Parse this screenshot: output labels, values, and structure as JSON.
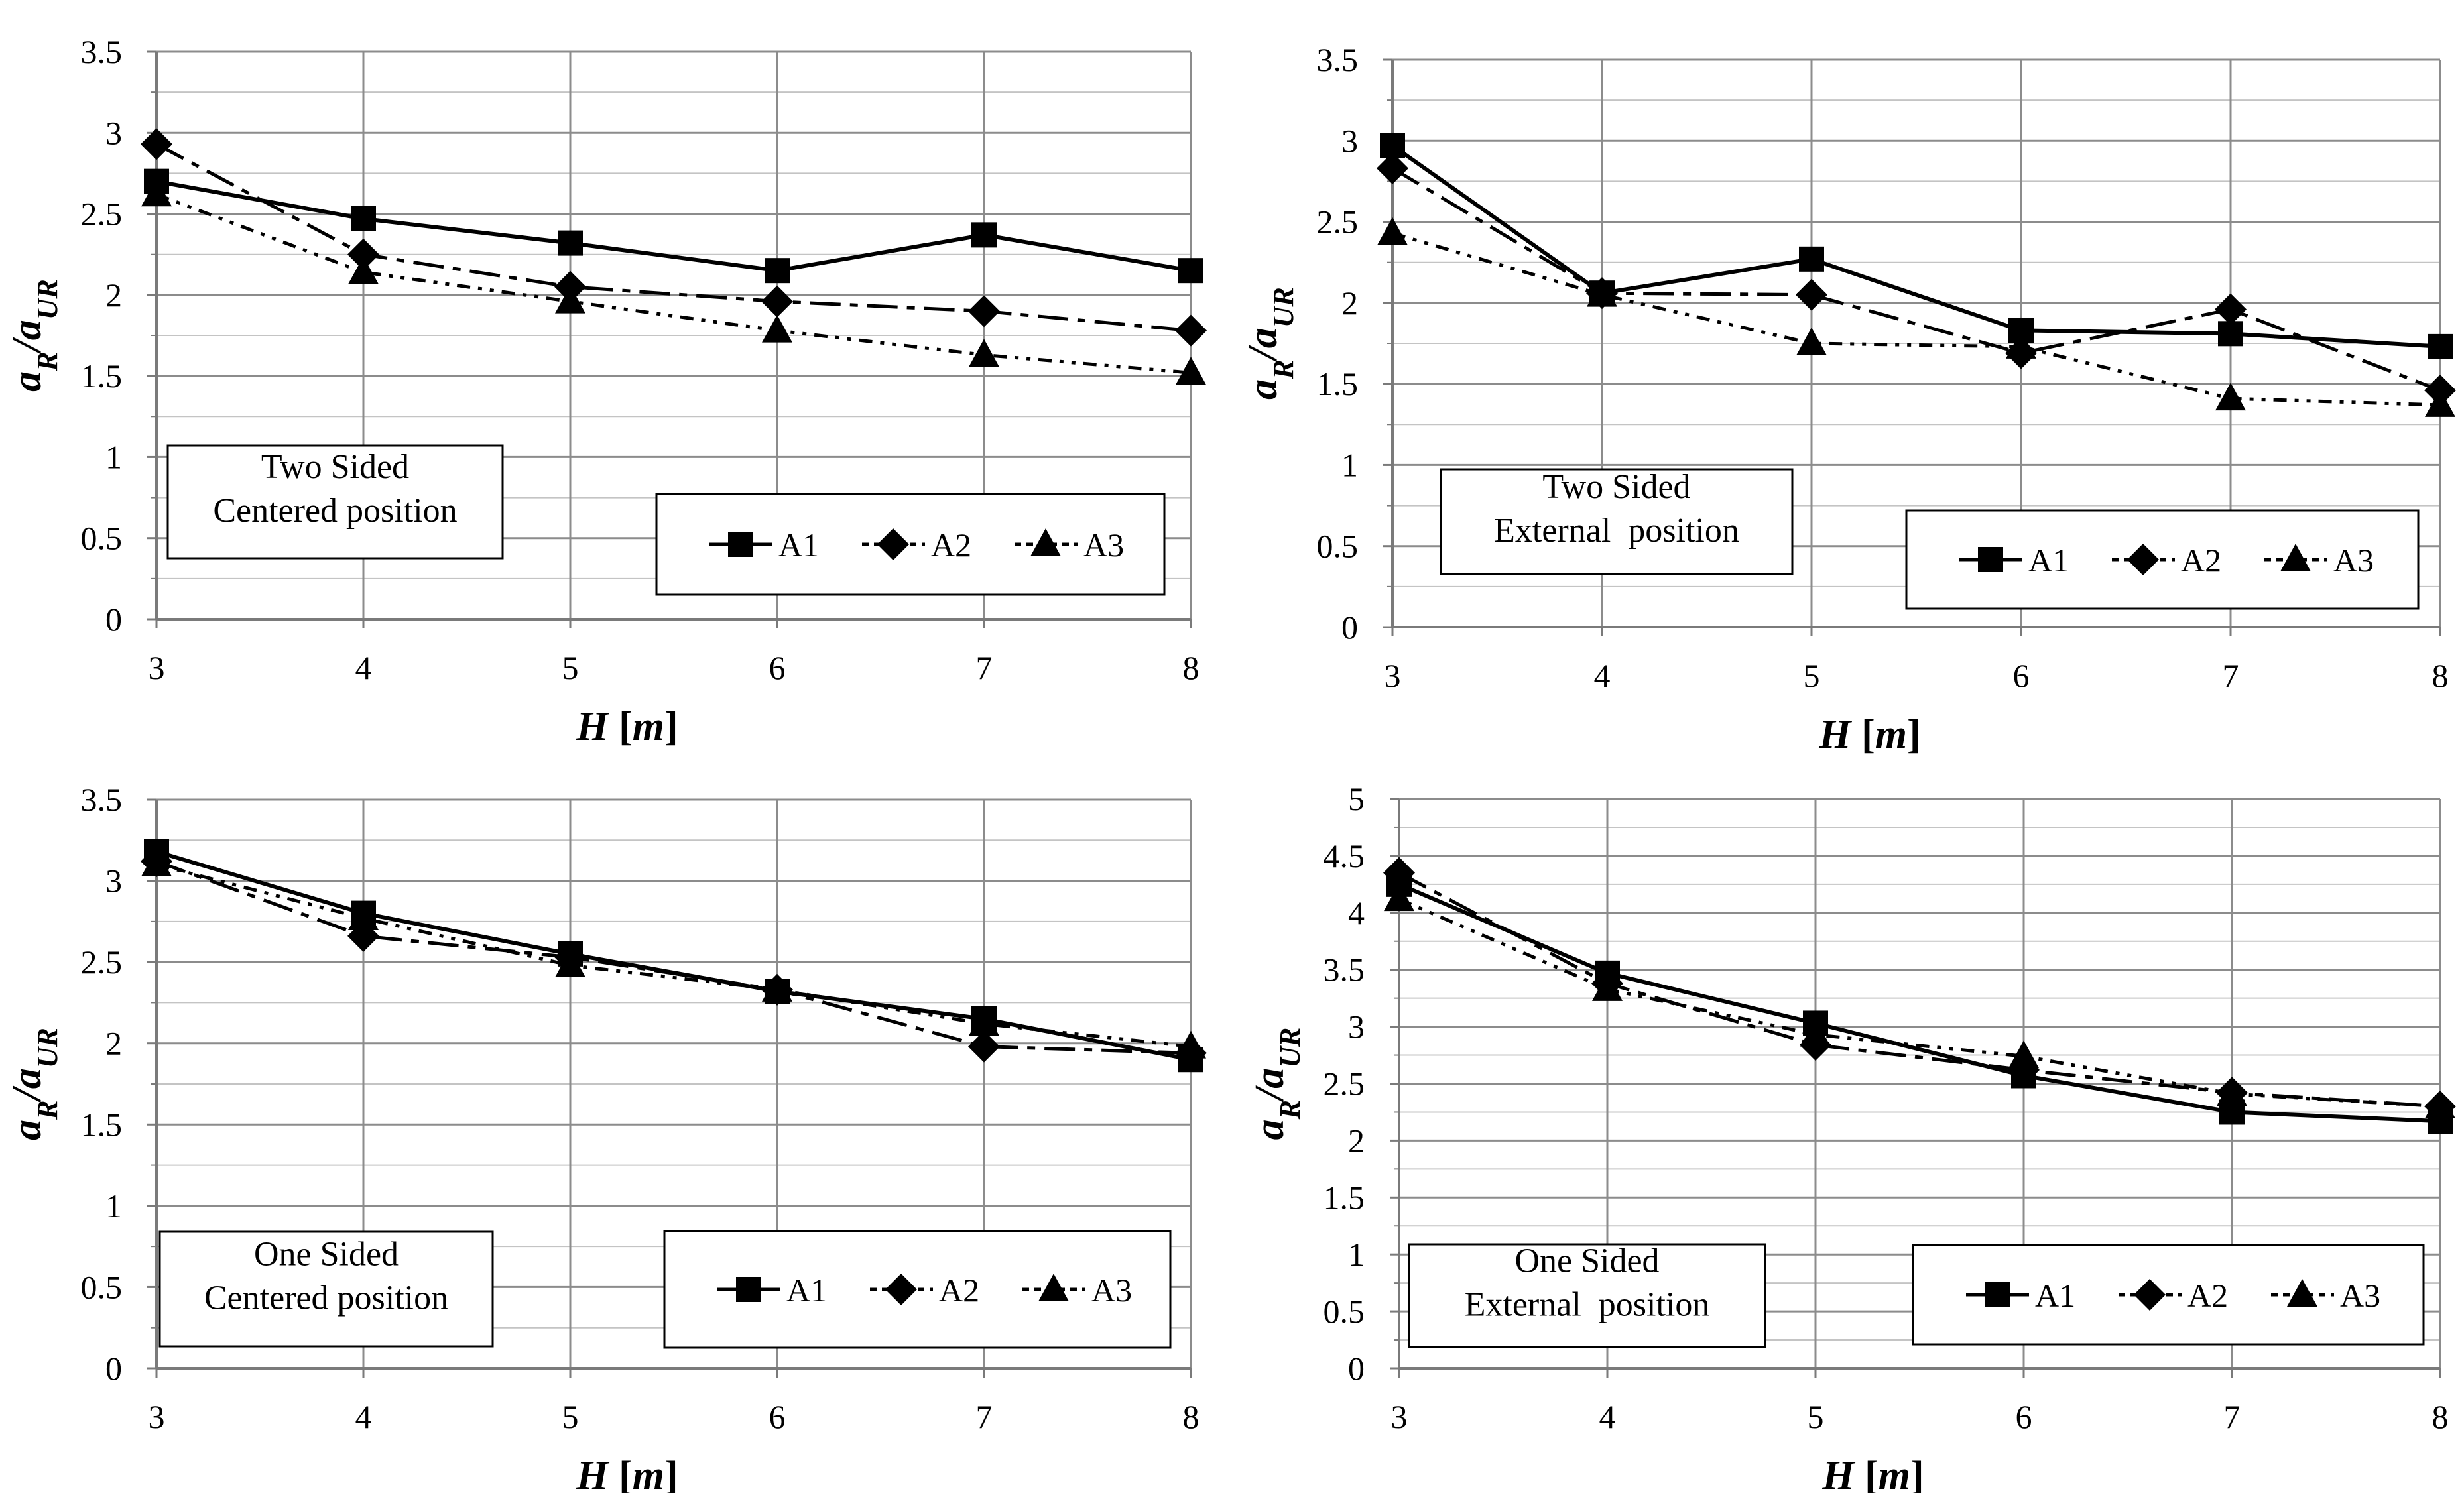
{
  "chart_data": [
    {
      "type": "line",
      "annotation": [
        "Two Sided",
        "Centered position"
      ],
      "x": [
        3,
        4,
        5,
        6,
        7,
        8
      ],
      "xlabel": "H [m]",
      "ylabel": "aR/aUR",
      "ylim": [
        0,
        3.5
      ],
      "yticks": [
        0,
        0.5,
        1,
        1.5,
        2,
        2.5,
        3,
        3.5
      ],
      "ytick_labels": [
        "0",
        "0.5",
        "1",
        "1.5",
        "2",
        "2.5",
        "3",
        "3.5"
      ],
      "grid": true,
      "legend_position": "bottom-right",
      "series": [
        {
          "name": "A1",
          "values": [
            2.7,
            2.47,
            2.32,
            2.15,
            2.37,
            2.15
          ]
        },
        {
          "name": "A2",
          "values": [
            2.93,
            2.25,
            2.05,
            1.96,
            1.9,
            1.78
          ]
        },
        {
          "name": "A3",
          "values": [
            2.62,
            2.14,
            1.96,
            1.78,
            1.63,
            1.52
          ]
        }
      ]
    },
    {
      "type": "line",
      "annotation": [
        "Two Sided",
        "External  position"
      ],
      "x": [
        3,
        4,
        5,
        6,
        7,
        8
      ],
      "xlabel": "H [m]",
      "ylabel": "aR/aUR",
      "ylim": [
        0,
        3.5
      ],
      "yticks": [
        0,
        0.5,
        1,
        1.5,
        2,
        2.5,
        3,
        3.5
      ],
      "ytick_labels": [
        "0",
        "0.5",
        "1",
        "1.5",
        "2",
        "2.5",
        "3",
        "3.5"
      ],
      "grid": true,
      "legend_position": "bottom-right",
      "series": [
        {
          "name": "A1",
          "values": [
            2.97,
            2.06,
            2.27,
            1.83,
            1.81,
            1.73
          ]
        },
        {
          "name": "A2",
          "values": [
            2.83,
            2.06,
            2.05,
            1.69,
            1.96,
            1.46
          ]
        },
        {
          "name": "A3",
          "values": [
            2.43,
            2.05,
            1.75,
            1.73,
            1.41,
            1.37
          ]
        }
      ]
    },
    {
      "type": "line",
      "annotation": [
        "One Sided",
        "Centered position"
      ],
      "x": [
        3,
        4,
        5,
        6,
        7,
        8
      ],
      "xlabel": "H [m]",
      "ylabel": "aR/aUR",
      "ylim": [
        0,
        3.5
      ],
      "yticks": [
        0,
        0.5,
        1,
        1.5,
        2,
        2.5,
        3,
        3.5
      ],
      "ytick_labels": [
        "0",
        "0.5",
        "1",
        "1.5",
        "2",
        "2.5",
        "3",
        "3.5"
      ],
      "grid": true,
      "legend_position": "bottom-right",
      "series": [
        {
          "name": "A1",
          "values": [
            3.18,
            2.8,
            2.55,
            2.32,
            2.15,
            1.9
          ]
        },
        {
          "name": "A2",
          "values": [
            3.12,
            2.66,
            2.53,
            2.33,
            1.98,
            1.94
          ]
        },
        {
          "name": "A3",
          "values": [
            3.1,
            2.77,
            2.48,
            2.33,
            2.12,
            1.98
          ]
        }
      ]
    },
    {
      "type": "line",
      "annotation": [
        "One Sided",
        "External  position"
      ],
      "x": [
        3,
        4,
        5,
        6,
        7,
        8
      ],
      "xlabel": "H [m]",
      "ylabel": "aR/aUR",
      "ylim": [
        0,
        5
      ],
      "yticks": [
        0,
        0.5,
        1,
        1.5,
        2,
        2.5,
        3,
        3.5,
        4,
        4.5,
        5
      ],
      "ytick_labels": [
        "0",
        "0.5",
        "1",
        "1.5",
        "2",
        "2.5",
        "3",
        "3.5",
        "4",
        "4.5",
        "5"
      ],
      "grid": true,
      "legend_position": "bottom-right",
      "series": [
        {
          "name": "A1",
          "values": [
            4.25,
            3.47,
            3.03,
            2.57,
            2.25,
            2.17
          ]
        },
        {
          "name": "A2",
          "values": [
            4.35,
            3.38,
            2.84,
            2.62,
            2.42,
            2.3
          ]
        },
        {
          "name": "A3",
          "values": [
            4.12,
            3.33,
            2.93,
            2.74,
            2.41,
            2.3
          ]
        }
      ]
    }
  ]
}
